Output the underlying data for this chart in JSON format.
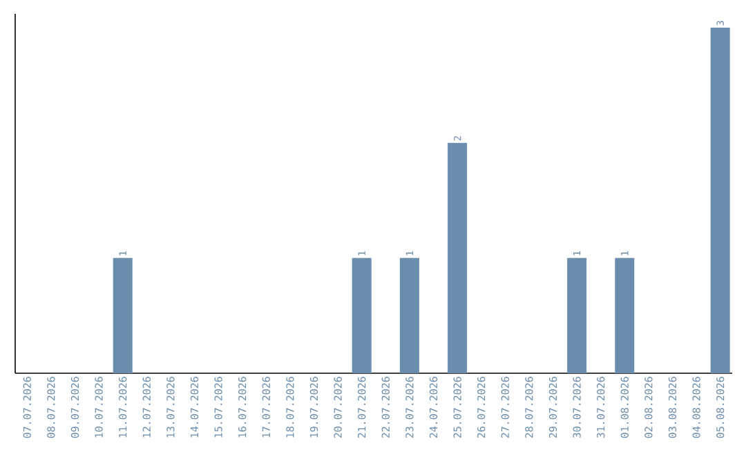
{
  "chart_data": {
    "type": "bar",
    "categories": [
      "07.07.2026",
      "08.07.2026",
      "09.07.2026",
      "10.07.2026",
      "11.07.2026",
      "12.07.2026",
      "13.07.2026",
      "14.07.2026",
      "15.07.2026",
      "16.07.2026",
      "17.07.2026",
      "18.07.2026",
      "19.07.2026",
      "20.07.2026",
      "21.07.2026",
      "22.07.2026",
      "23.07.2026",
      "24.07.2026",
      "25.07.2026",
      "26.07.2026",
      "27.07.2026",
      "28.07.2026",
      "29.07.2026",
      "30.07.2026",
      "31.07.2026",
      "01.08.2026",
      "02.08.2026",
      "03.08.2026",
      "04.08.2026",
      "05.08.2026"
    ],
    "values": [
      0,
      0,
      0,
      0,
      1,
      0,
      0,
      0,
      0,
      0,
      0,
      0,
      0,
      0,
      1,
      0,
      1,
      0,
      2,
      0,
      0,
      0,
      0,
      1,
      0,
      1,
      0,
      0,
      0,
      3
    ],
    "value_labels": [
      null,
      null,
      null,
      null,
      "1",
      null,
      null,
      null,
      null,
      null,
      null,
      null,
      null,
      null,
      "1",
      null,
      "1",
      null,
      "2",
      null,
      null,
      null,
      null,
      "1",
      null,
      "1",
      null,
      null,
      null,
      "3"
    ],
    "color": "#6a8cad",
    "tick_labels": "x"
  }
}
